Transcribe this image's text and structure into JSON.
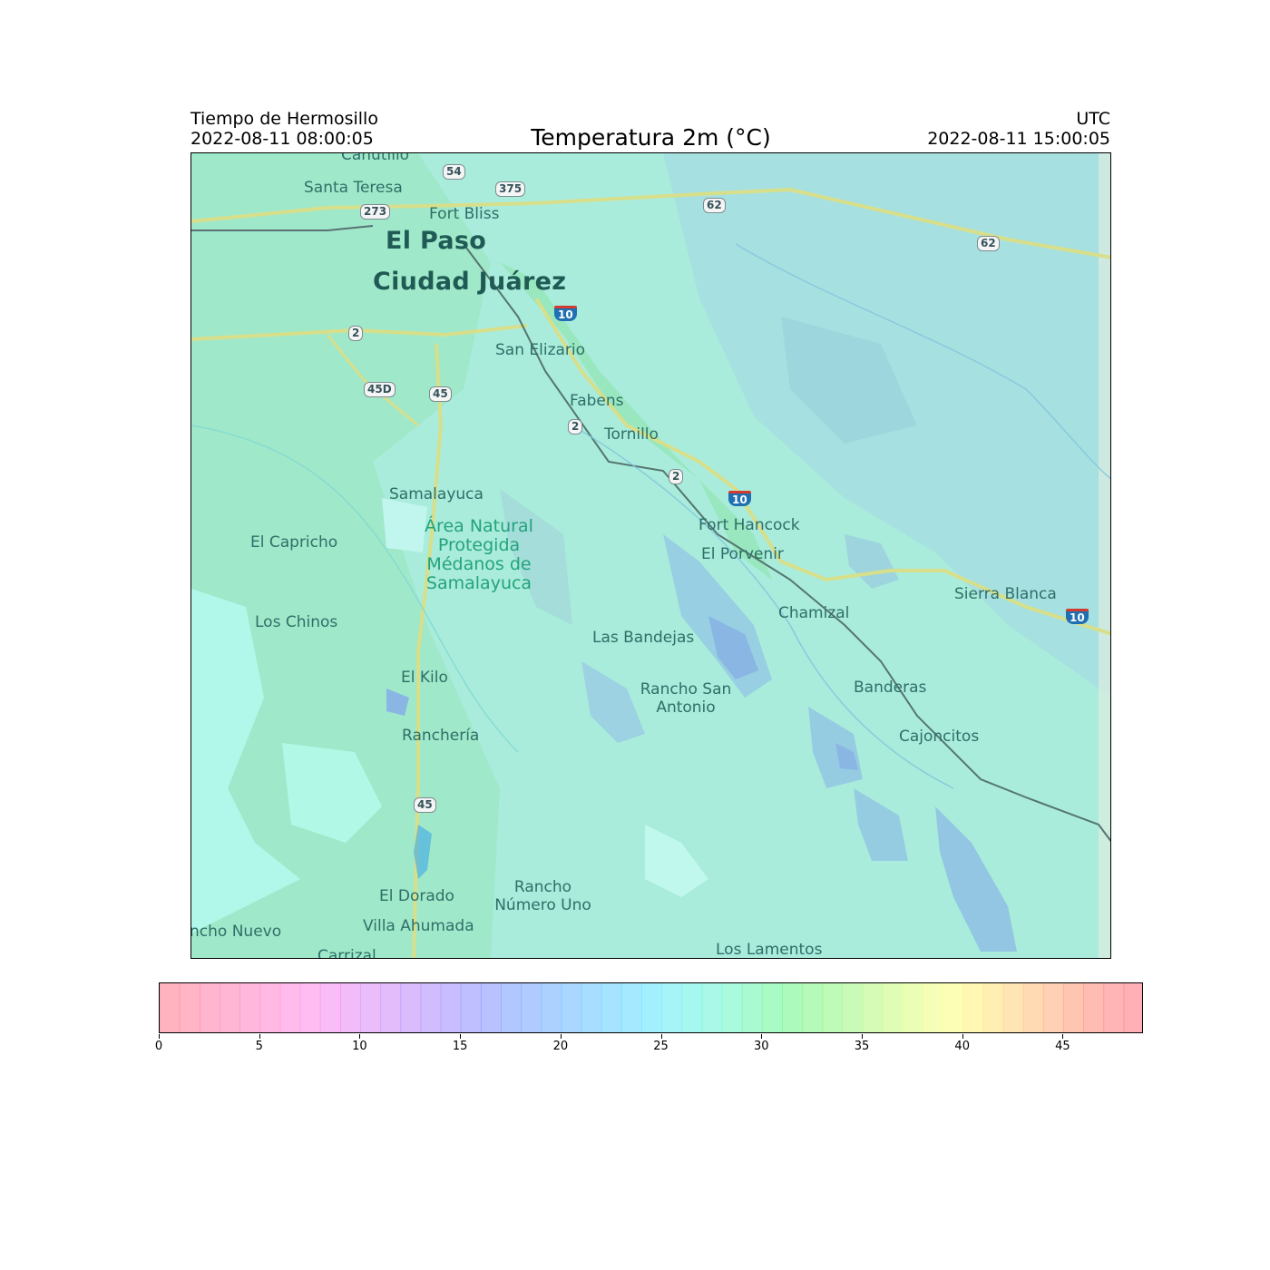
{
  "header": {
    "left_line1": "Tiempo de Hermosillo",
    "left_line2": "2022-08-11 08:00:05",
    "title": "Temperatura 2m (°C)",
    "right_line1": "UTC",
    "right_line2": "2022-08-11 15:00:05"
  },
  "map": {
    "places": {
      "canutillo": "Canutillo",
      "santa_teresa": "Santa Teresa",
      "fort_bliss": "Fort Bliss",
      "el_paso": "El Paso",
      "ciudad_juarez": "Ciudad Juárez",
      "san_elizario": "San Elizario",
      "fabens": "Fabens",
      "tornillo": "Tornillo",
      "samalayuca": "Samalayuca",
      "area_natural": "Área Natural",
      "protegida": "Protegida",
      "medanos_de": "Médanos de",
      "samalayuca_park": "Samalayuca",
      "el_capricho": "El Capricho",
      "fort_hancock": "Fort Hancock",
      "el_porvenir": "El Porvenir",
      "los_chinos": "Los Chinos",
      "las_bandejas": "Las Bandejas",
      "chamizal": "Chamizal",
      "sierra_blanca": "Sierra Blanca",
      "el_kilo": "El Kilo",
      "rancho_san": "Rancho San",
      "antonio": "Antonio",
      "banderas": "Banderas",
      "rancheria": "Ranchería",
      "cajoncitos": "Cajoncitos",
      "rancho": "Rancho",
      "numero_uno": "Número Uno",
      "el_dorado": "El Dorado",
      "villa_ahumada": "Villa Ahumada",
      "rancho_nuevo": "ncho Nuevo",
      "carrizal": "Carrizal",
      "los_lamentos": "Los Lamentos"
    },
    "shields": {
      "s54": "54",
      "s375": "375",
      "s273": "273",
      "s62a": "62",
      "s62b": "62",
      "s2a": "2",
      "s45d": "45D",
      "s45a": "45",
      "s2b": "2",
      "s2c": "2",
      "s45b": "45",
      "i10a": "10",
      "i10b": "10",
      "i10c": "10"
    }
  },
  "colorbar": {
    "min": 0,
    "max": 49,
    "step": 1,
    "ticks": [
      "0",
      "5",
      "10",
      "15",
      "20",
      "25",
      "30",
      "35",
      "40",
      "45"
    ],
    "colors": [
      "#ff9aa8",
      "#ff9cb2",
      "#ff9cbc",
      "#ff9ec6",
      "#ffa0d0",
      "#ffa2da",
      "#ffa4e4",
      "#ffa6ee",
      "#f8a6f4",
      "#eea6f6",
      "#e4a6f8",
      "#daa6fa",
      "#cea6fc",
      "#c2a6fe",
      "#b6a8ff",
      "#aaaaff",
      "#a2aeff",
      "#9ab4ff",
      "#94baff",
      "#90c2ff",
      "#8ccaff",
      "#8ad2ff",
      "#88daff",
      "#86e2ff",
      "#86eafc",
      "#88f0f6",
      "#8af4ec",
      "#8cf6e0",
      "#8ef8d2",
      "#8ef8c2",
      "#8ef8b2",
      "#90f8a6",
      "#9cf8a0",
      "#a8f8a0",
      "#b8f8a0",
      "#c8fa9e",
      "#d6fc9e",
      "#e4fe9e",
      "#f0fe9e",
      "#fcfe9c",
      "#fff49a",
      "#ffea9a",
      "#ffdc9a",
      "#ffce9a",
      "#ffc09a",
      "#ffb29a",
      "#ffa69a",
      "#ff9c9c",
      "#ff969e"
    ],
    "opacity": 0.75
  }
}
